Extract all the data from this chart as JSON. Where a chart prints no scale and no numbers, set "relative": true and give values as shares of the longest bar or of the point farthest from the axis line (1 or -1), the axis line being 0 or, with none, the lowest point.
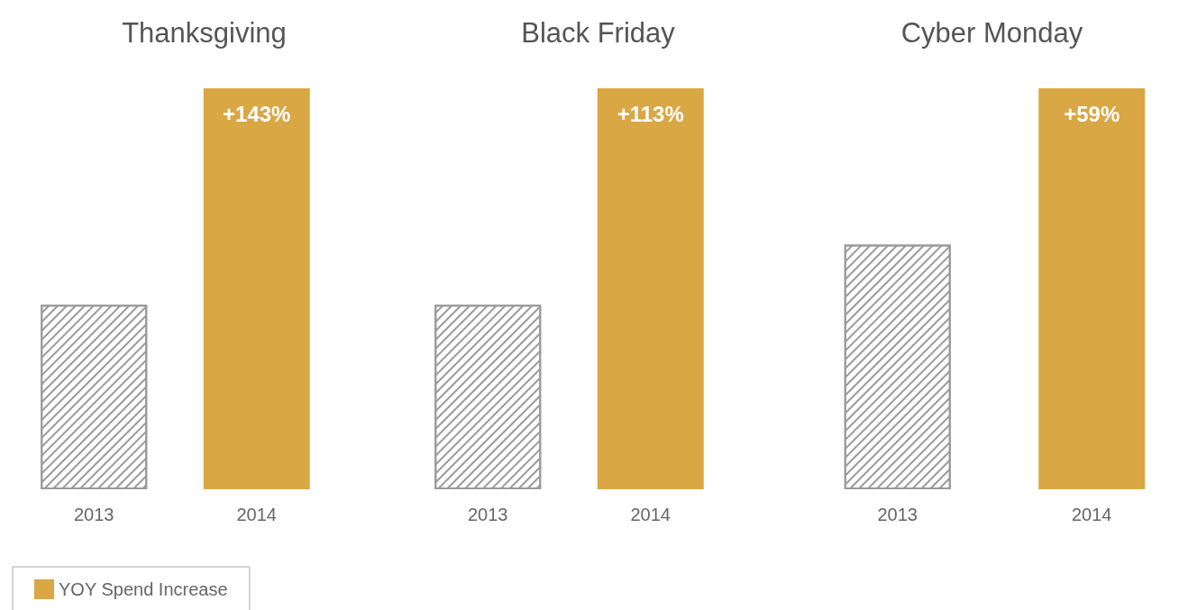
{
  "chart_data": [
    {
      "type": "bar",
      "title": "Thanksgiving",
      "categories": [
        "2013",
        "2014"
      ],
      "relative": true,
      "stacked": true,
      "legend": "bottom left",
      "annotations": [
        {
          "text": "+143%",
          "x": "2014",
          "y": 1
        }
      ],
      "series": [
        {
          "color": "#9a9a9a",
          "values": [
            0.46,
            null
          ]
        },
        {
          "name": "YOY Spend Increase",
          "color": "#d9a744",
          "values": [
            null,
            1
          ]
        }
      ]
    },
    {
      "type": "bar",
      "title": "Black Friday",
      "categories": [
        "2013",
        "2014"
      ],
      "relative": true,
      "stacked": true,
      "annotations": [
        {
          "text": "+113%",
          "x": "2014",
          "y": 1
        }
      ],
      "series": [
        {
          "color": "#9a9a9a",
          "values": [
            0.46,
            null
          ]
        },
        {
          "color": "#d9a744",
          "values": [
            null,
            1
          ]
        }
      ]
    },
    {
      "type": "bar",
      "title": "Cyber Monday",
      "categories": [
        "2013",
        "2014"
      ],
      "relative": true,
      "stacked": true,
      "annotations": [
        {
          "text": "+59%",
          "x": "2014",
          "y": 1
        }
      ],
      "series": [
        {
          "color": "#9a9a9a",
          "values": [
            0.61,
            null
          ]
        },
        {
          "color": "#d9a744",
          "values": [
            null,
            1
          ]
        }
      ]
    }
  ]
}
